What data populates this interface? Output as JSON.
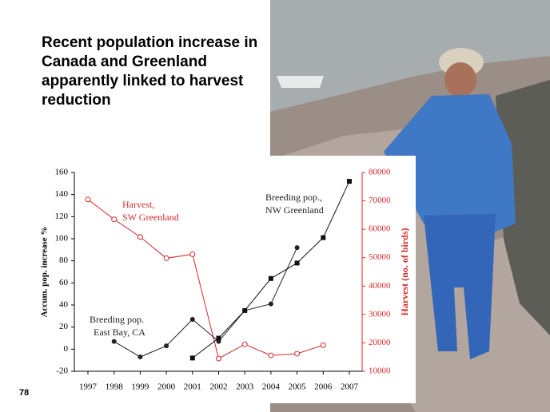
{
  "slide": {
    "title_lines": [
      "Recent population increase in",
      "Canada and Greenland",
      "apparently linked to harvest",
      "reduction"
    ],
    "page_number": "78"
  },
  "chart_data": {
    "type": "line",
    "categories": [
      "1997",
      "1998",
      "1999",
      "2000",
      "2001",
      "2002",
      "2003",
      "2004",
      "2005",
      "2006",
      "2007"
    ],
    "ylabel": "Accum. pop. increase %",
    "y2label": "Harvest (no. of birds)",
    "ylim": [
      -20,
      160
    ],
    "yticks": [
      -20,
      0,
      20,
      40,
      60,
      80,
      100,
      120,
      140,
      160
    ],
    "y2lim": [
      10000,
      80000
    ],
    "y2ticks": [
      10000,
      20000,
      30000,
      40000,
      50000,
      60000,
      70000,
      80000
    ],
    "series": [
      {
        "name": "Harvest, SW Greenland",
        "color": "#d42a2a",
        "marker": "open-circle",
        "axis": "y2",
        "values": [
          70500,
          63500,
          57300,
          49800,
          51200,
          14500,
          19500,
          15600,
          16200,
          19200,
          null
        ]
      },
      {
        "name": "Breeding pop. East Bay, CA",
        "color": "#222222",
        "marker": "circle",
        "values": [
          null,
          7,
          -7,
          3,
          27,
          7,
          35,
          41,
          92,
          null,
          null
        ]
      },
      {
        "name": "Breeding pop., NW Greenland",
        "color": "#111111",
        "marker": "square",
        "values": [
          null,
          null,
          null,
          null,
          -8,
          10,
          35,
          64,
          78,
          101,
          152
        ]
      }
    ],
    "annotations": [
      {
        "lines": [
          "Harvest,",
          "SW Greenland"
        ],
        "color": "#d42a2a"
      },
      {
        "lines": [
          "Breeding pop.,",
          "NW Greenland"
        ],
        "color": "#222222"
      },
      {
        "lines": [
          "Breeding pop.",
          "East Bay, CA"
        ],
        "color": "#222222"
      }
    ]
  }
}
